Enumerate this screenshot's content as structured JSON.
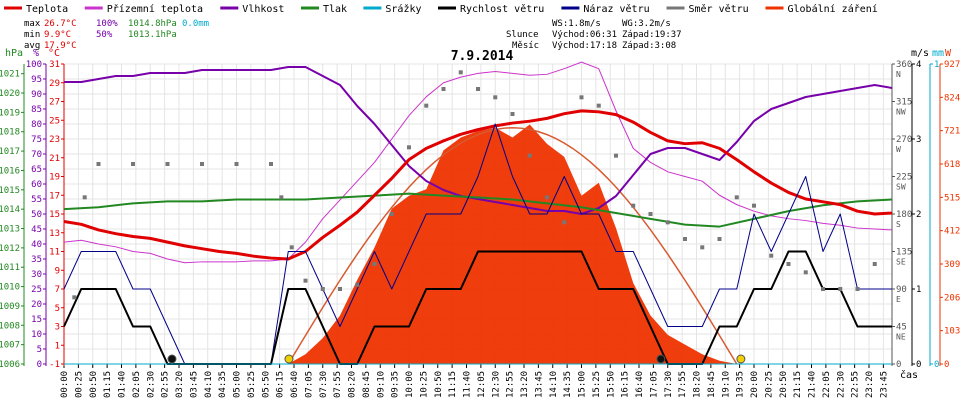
{
  "legend": [
    {
      "label": "Teplota",
      "color": "#e00000"
    },
    {
      "label": "Přízemní teplota",
      "color": "#cc33cc"
    },
    {
      "label": "Vlhkost",
      "color": "#7700aa"
    },
    {
      "label": "Tlak",
      "color": "#228822"
    },
    {
      "label": "Srážky",
      "color": "#00aacc"
    },
    {
      "label": "Rychlost větru",
      "color": "#000000"
    },
    {
      "label": "Náraz větru",
      "color": "#000088"
    },
    {
      "label": "Směr větru",
      "color": "#777777"
    },
    {
      "label": "Globální záření",
      "color": "#ee3300"
    }
  ],
  "stats": {
    "max": {
      "label": "max",
      "temp": "26.7°C",
      "hum": "100%",
      "press": "1014.8hPa",
      "rain": "0.0mm"
    },
    "min": {
      "label": "min",
      "temp": "9.9°C",
      "hum": "50%",
      "press": "1013.1hPa"
    },
    "avg": {
      "label": "avg",
      "temp": "17.9°C"
    }
  },
  "wind_info": {
    "ws": "WS:1.8m/s",
    "wg": "WG:3.2m/s"
  },
  "sun_info": {
    "label": "Slunce",
    "rise": "Východ:06:31",
    "set": "Západ:19:37"
  },
  "moon_info": {
    "label": "Měsíc",
    "rise": "Východ:17:18",
    "set": "Západ:3:08"
  },
  "colors": {
    "temp": "#e00000",
    "feels": "#cc33cc",
    "hum": "#7700aa",
    "press": "#228822",
    "rain": "#00aacc",
    "ws": "#000000",
    "wg": "#000088",
    "dir": "#777777",
    "rad": "#ee3300"
  },
  "chart_data": {
    "type": "line",
    "title": "7.9.2014",
    "xlabel": "čas",
    "x_tick_labels": [
      "00:00",
      "00:25",
      "00:50",
      "01:15",
      "01:40",
      "02:05",
      "02:30",
      "02:55",
      "03:20",
      "03:45",
      "04:10",
      "04:35",
      "05:00",
      "05:25",
      "05:50",
      "06:15",
      "06:40",
      "07:05",
      "07:30",
      "07:55",
      "08:20",
      "08:45",
      "09:10",
      "09:35",
      "10:00",
      "10:25",
      "10:50",
      "11:15",
      "11:40",
      "12:05",
      "12:30",
      "12:55",
      "13:20",
      "13:45",
      "14:10",
      "14:35",
      "15:00",
      "15:25",
      "15:50",
      "16:15",
      "16:40",
      "17:05",
      "17:30",
      "17:55",
      "18:20",
      "18:45",
      "19:10",
      "19:35",
      "20:00",
      "20:25",
      "20:50",
      "21:15",
      "21:40",
      "22:05",
      "22:30",
      "22:55",
      "23:20",
      "23:45"
    ],
    "axes": {
      "hpa": {
        "unit": "hPa",
        "ticks": [
          "1021",
          "1020",
          "1019",
          "1018",
          "1017",
          "1016",
          "1015",
          "1014",
          "1013",
          "1012",
          "1011",
          "1010",
          "1009",
          "1008",
          "1007",
          "1006"
        ],
        "ylim": [
          1006,
          1021.5
        ]
      },
      "percent": {
        "unit": "%",
        "ticks": [
          "100",
          "95",
          "90",
          "85",
          "80",
          "75",
          "70",
          "65",
          "60",
          "55",
          "50",
          "45",
          "40",
          "35",
          "30",
          "25",
          "20",
          "15",
          "10",
          "5",
          "0"
        ],
        "ylim": [
          0,
          100
        ]
      },
      "celsius": {
        "unit": "°C",
        "ticks": [
          "31",
          "29",
          "27",
          "25",
          "23",
          "21",
          "19",
          "17",
          "15",
          "13",
          "11",
          "9",
          "7",
          "5",
          "3",
          "1",
          "-1"
        ],
        "ylim": [
          -1,
          31
        ]
      },
      "direction": {
        "unit": "",
        "ticks": [
          "360 N",
          "315 NW",
          "270 W",
          "225 SW",
          "180 S",
          "135 SE",
          "90 E",
          "45 NE",
          "0"
        ],
        "ylim": [
          0,
          360
        ]
      },
      "ms": {
        "unit": "m/s",
        "ticks": [
          "4",
          "3",
          "2",
          "1",
          "0"
        ],
        "ylim": [
          0,
          4
        ]
      },
      "mm": {
        "unit": "mm",
        "ticks": [
          "1",
          "0"
        ],
        "ylim": [
          0,
          1
        ]
      },
      "watt": {
        "unit": "W",
        "ticks": [
          "927",
          "824",
          "721",
          "618",
          "515",
          "412",
          "309",
          "206",
          "103",
          "0"
        ],
        "ylim": [
          0,
          927
        ]
      }
    },
    "series": [
      {
        "name": "Teplota",
        "unit": "°C",
        "x": [
          0,
          0.5,
          1,
          1.5,
          2,
          2.5,
          3,
          3.5,
          4,
          4.5,
          5,
          5.5,
          6,
          6.5,
          7,
          7.5,
          8,
          8.5,
          9,
          9.5,
          10,
          10.5,
          11,
          11.5,
          12,
          12.5,
          13,
          13.5,
          14,
          14.5,
          15,
          15.5,
          16,
          16.5,
          17,
          17.5,
          18,
          18.5,
          19,
          19.5,
          20,
          20.5,
          21,
          21.5,
          22,
          22.5,
          23,
          23.5,
          24
        ],
        "y": [
          14.2,
          13.9,
          13.3,
          12.9,
          12.6,
          12.4,
          12.0,
          11.6,
          11.3,
          11.0,
          10.8,
          10.5,
          10.3,
          10.2,
          11.0,
          12.5,
          13.8,
          15.2,
          17.0,
          18.8,
          20.8,
          22.0,
          22.8,
          23.5,
          24.0,
          24.4,
          24.7,
          24.9,
          25.2,
          25.7,
          26.0,
          25.9,
          25.6,
          24.8,
          23.7,
          22.8,
          22.5,
          22.6,
          22.0,
          20.8,
          19.5,
          18.3,
          17.3,
          16.6,
          16.3,
          16.0,
          15.3,
          15.0,
          15.1
        ]
      },
      {
        "name": "Přízemní teplota",
        "unit": "°C",
        "x": [
          0,
          0.5,
          1,
          1.5,
          2,
          2.5,
          3,
          3.5,
          4,
          4.5,
          5,
          5.5,
          6,
          6.5,
          7,
          7.5,
          8,
          8.5,
          9,
          9.5,
          10,
          10.5,
          11,
          11.5,
          12,
          12.5,
          13,
          13.5,
          14,
          14.5,
          15,
          15.5,
          16,
          16.5,
          17,
          17.5,
          18,
          18.5,
          19,
          19.5,
          20,
          20.5,
          21,
          21.5,
          22,
          22.5,
          23,
          23.5,
          24
        ],
        "y": [
          12.0,
          12.2,
          11.8,
          11.5,
          11.0,
          10.8,
          10.2,
          9.8,
          9.9,
          9.9,
          9.9,
          10.0,
          10.0,
          10.2,
          12.0,
          14.5,
          16.5,
          18.5,
          20.5,
          23.0,
          25.5,
          27.5,
          29.0,
          29.6,
          30.0,
          30.2,
          30.0,
          29.8,
          29.9,
          30.5,
          31.2,
          30.5,
          26.0,
          22.0,
          20.5,
          19.5,
          19.0,
          18.5,
          17.0,
          16.0,
          15.3,
          14.8,
          14.5,
          14.3,
          14.0,
          13.8,
          13.5,
          13.4,
          13.3
        ]
      },
      {
        "name": "Vlhkost",
        "unit": "%",
        "x": [
          0,
          0.5,
          1,
          1.5,
          2,
          2.5,
          3,
          3.5,
          4,
          4.5,
          5,
          5.5,
          6,
          6.5,
          7,
          7.5,
          8,
          8.5,
          9,
          9.5,
          10,
          10.5,
          11,
          11.5,
          12,
          12.5,
          13,
          13.5,
          14,
          14.5,
          15,
          15.5,
          16,
          16.5,
          17,
          17.5,
          18,
          18.5,
          19,
          19.5,
          20,
          20.5,
          21,
          21.5,
          22,
          22.5,
          23,
          23.5,
          24
        ],
        "y": [
          94,
          94,
          95,
          96,
          96,
          97,
          97,
          97,
          98,
          98,
          98,
          98,
          98,
          99,
          99,
          96,
          93,
          86,
          80,
          73,
          66,
          61,
          58,
          56,
          55,
          54,
          53,
          52,
          51,
          51,
          50,
          52,
          56,
          63,
          70,
          72,
          72,
          70,
          68,
          74,
          81,
          85,
          87,
          89,
          90,
          91,
          92,
          93,
          92
        ]
      },
      {
        "name": "Tlak",
        "unit": "hPa",
        "x": [
          0,
          1,
          2,
          3,
          4,
          5,
          6,
          7,
          8,
          9,
          10,
          11,
          12,
          13,
          14,
          15,
          16,
          17,
          18,
          19,
          20,
          21,
          22,
          23,
          24
        ],
        "y": [
          1014.0,
          1014.1,
          1014.3,
          1014.4,
          1014.4,
          1014.5,
          1014.5,
          1014.5,
          1014.6,
          1014.7,
          1014.8,
          1014.7,
          1014.6,
          1014.5,
          1014.3,
          1014.1,
          1013.8,
          1013.5,
          1013.2,
          1013.1,
          1013.5,
          1013.9,
          1014.2,
          1014.4,
          1014.5
        ]
      },
      {
        "name": "Rychlost větru",
        "unit": "m/s",
        "x": [
          0,
          0.5,
          1,
          1.5,
          2,
          2.5,
          3,
          3.5,
          4,
          4.5,
          5,
          5.5,
          6,
          6.5,
          7,
          7.5,
          8,
          8.5,
          9,
          9.5,
          10,
          10.5,
          11,
          11.5,
          12,
          12.5,
          13,
          13.5,
          14,
          14.5,
          15,
          15.5,
          16,
          16.5,
          17,
          17.5,
          18,
          18.5,
          19,
          19.5,
          20,
          20.5,
          21,
          21.5,
          22,
          22.5,
          23,
          23.5,
          24
        ],
        "y": [
          0.5,
          1,
          1,
          1,
          0.5,
          0.5,
          0,
          0,
          0,
          0,
          0,
          0,
          0,
          1,
          1,
          0.5,
          0,
          0,
          0.5,
          0.5,
          0.5,
          1,
          1,
          1,
          1.5,
          1.5,
          1.5,
          1.5,
          1.5,
          1.5,
          1.5,
          1,
          1,
          1,
          0.5,
          0,
          0,
          0,
          0.5,
          0.5,
          1,
          1,
          1.5,
          1.5,
          1,
          1,
          0.5,
          0.5,
          0.5
        ]
      },
      {
        "name": "Náraz větru",
        "unit": "m/s",
        "x": [
          0,
          0.5,
          1,
          1.5,
          2,
          2.5,
          3,
          3.5,
          4,
          4.5,
          5,
          5.5,
          6,
          6.5,
          7,
          7.5,
          8,
          8.5,
          9,
          9.5,
          10,
          10.5,
          11,
          11.5,
          12,
          12.5,
          13,
          13.5,
          14,
          14.5,
          15,
          15.5,
          16,
          16.5,
          17,
          17.5,
          18,
          18.5,
          19,
          19.5,
          20,
          20.5,
          21,
          21.5,
          22,
          22.5,
          23,
          23.5,
          24
        ],
        "y": [
          1,
          1.5,
          1.5,
          1.5,
          1,
          1,
          0.5,
          0,
          0,
          0,
          0,
          0,
          0,
          1.5,
          1.5,
          1,
          0.5,
          1,
          1.5,
          1,
          1.5,
          2,
          2,
          2,
          2.5,
          3.2,
          2.5,
          2,
          2,
          2.5,
          2,
          2,
          1.5,
          1.5,
          1,
          0.5,
          0.5,
          0.5,
          1,
          1,
          2,
          1.5,
          2,
          2.5,
          1.5,
          2,
          1,
          1,
          1
        ]
      },
      {
        "name": "Směr větru",
        "unit": "°",
        "x": [
          0.3,
          0.6,
          1,
          2,
          3,
          4,
          5,
          6,
          6.3,
          6.6,
          7,
          7.5,
          8,
          8.5,
          9,
          9.5,
          10,
          10.5,
          11,
          11.5,
          12,
          12.5,
          13,
          13.5,
          14,
          14.5,
          15,
          15.5,
          16,
          16.5,
          17,
          17.5,
          18,
          18.5,
          19,
          19.5,
          20,
          20.5,
          21,
          21.5,
          22,
          22.5,
          23,
          23.5
        ],
        "y": [
          80,
          200,
          240,
          240,
          240,
          240,
          240,
          240,
          200,
          140,
          100,
          90,
          90,
          95,
          120,
          180,
          260,
          310,
          330,
          350,
          330,
          320,
          300,
          250,
          200,
          170,
          320,
          310,
          250,
          190,
          180,
          170,
          150,
          140,
          150,
          200,
          190,
          130,
          120,
          110,
          90,
          90,
          90,
          120
        ]
      },
      {
        "name": "Globální záření",
        "unit": "W",
        "x": [
          6.5,
          7,
          7.5,
          8,
          8.5,
          9,
          9.5,
          10,
          10.5,
          11,
          11.5,
          12,
          12.5,
          13,
          13.5,
          14,
          14.5,
          15,
          15.5,
          16,
          16.5,
          17,
          17.5,
          18,
          18.5,
          19,
          19.5
        ],
        "y": [
          0,
          30,
          80,
          150,
          260,
          360,
          480,
          520,
          540,
          660,
          700,
          720,
          730,
          700,
          740,
          680,
          640,
          520,
          560,
          420,
          250,
          150,
          90,
          60,
          30,
          10,
          0
        ]
      },
      {
        "name": "Srážky",
        "unit": "mm",
        "x": [
          0,
          24
        ],
        "y": [
          0,
          0
        ]
      }
    ]
  }
}
